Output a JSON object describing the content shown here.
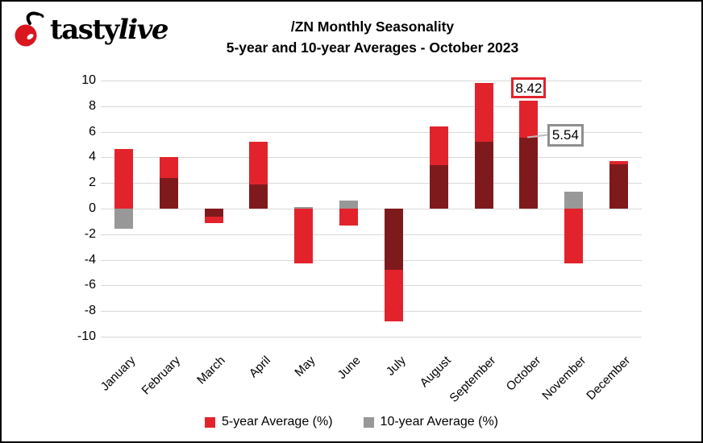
{
  "logo": {
    "brand_first": "tasty",
    "brand_second": "live",
    "cherry_color": "#D9161E"
  },
  "title": {
    "line1": "/ZN Monthly Seasonality",
    "line2": "5-year and 10-year Averages - October 2023"
  },
  "chart_data": {
    "type": "bar",
    "title": "/ZN Monthly Seasonality",
    "subtitle": "5-year and 10-year Averages - October 2023",
    "categories": [
      "January",
      "February",
      "March",
      "April",
      "May",
      "June",
      "July",
      "August",
      "September",
      "October",
      "November",
      "December"
    ],
    "series": [
      {
        "name": "5-year Average (%)",
        "color": "#E2232C",
        "values": [
          4.65,
          4.0,
          -1.15,
          5.25,
          -4.25,
          -1.35,
          -8.8,
          6.4,
          9.8,
          8.42,
          -4.3,
          3.7
        ]
      },
      {
        "name": "10-year Average (%)",
        "color": "#989898",
        "values": [
          -1.6,
          2.4,
          -0.6,
          1.9,
          0.15,
          0.65,
          -4.8,
          3.4,
          5.2,
          5.54,
          1.3,
          3.45
        ]
      }
    ],
    "overlap_color": "#7F1A1C",
    "ylim": [
      -10,
      10
    ],
    "yticks": [
      10,
      8,
      6,
      4,
      2,
      0,
      -2,
      -4,
      -6,
      -8,
      -10
    ],
    "grid": true,
    "gridline_color": "#D9D9D9",
    "legend_position": "bottom",
    "annotations": [
      {
        "text": "8.42",
        "month": "October",
        "series": "5-year Average (%)",
        "box_border": "#E2232C"
      },
      {
        "text": "5.54",
        "month": "October",
        "series": "10-year Average (%)",
        "box_border": "#8F8F8F"
      }
    ]
  },
  "legend": {
    "items": [
      {
        "label": "5-year Average (%)",
        "color": "#E2232C"
      },
      {
        "label": "10-year Average (%)",
        "color": "#989898"
      }
    ]
  }
}
